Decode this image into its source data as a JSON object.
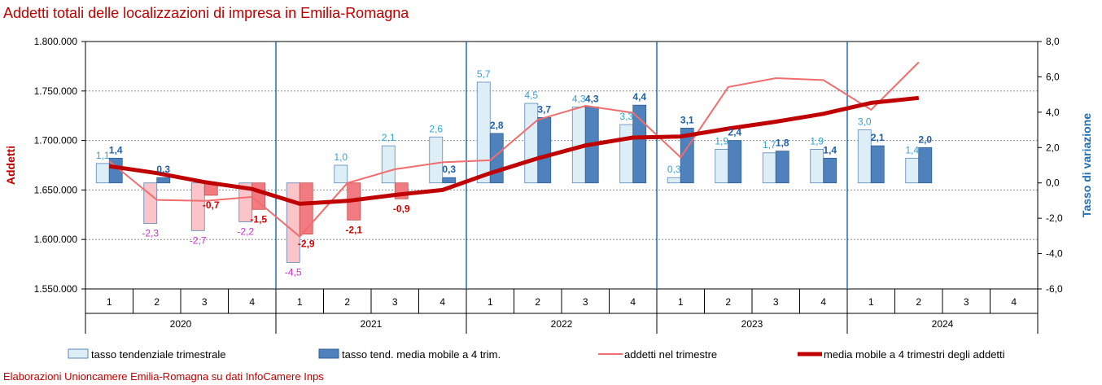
{
  "title": "Addetti totali delle localizzazioni di impresa in Emilia-Romagna",
  "footer": "Elaborazioni Unioncamere Emilia-Romagna su dati InfoCamere Inps",
  "colors": {
    "title": "#c00000",
    "light_bar": "#ddeef6",
    "light_bar_neg": "#fbc4c8",
    "dark_bar": "#4f81bd",
    "dark_bar_neg": "#f27b82",
    "thin_line": "#f26d6d",
    "thick_line": "#c00000",
    "light_label_pos": "#2fa3d6",
    "light_label_neg": "#cc33cc",
    "dark_label_pos": "#1f5fa6",
    "dark_label_neg": "#d40000",
    "year_divider": "#1f6fb5"
  },
  "chart_data": {
    "type": "bar",
    "title": "Addetti totali delle localizzazioni di impresa in Emilia-Romagna",
    "ylabel": "Addetti",
    "y2label": "Tasso di variazione",
    "ylim": [
      1550000,
      1800000
    ],
    "y2lim": [
      -6,
      8
    ],
    "y_ticks": [
      "1.550.000",
      "1.600.000",
      "1.650.000",
      "1.700.000",
      "1.750.000",
      "1.800.000"
    ],
    "y2_ticks": [
      "-6,0",
      "-4,0",
      "-2,0",
      "0,0",
      "2,0",
      "4,0",
      "6,0",
      "8,0"
    ],
    "quarters": [
      "1",
      "2",
      "3",
      "4",
      "1",
      "2",
      "3",
      "4",
      "1",
      "2",
      "3",
      "4",
      "1",
      "2",
      "3",
      "4",
      "1",
      "2",
      "3",
      "4"
    ],
    "years": [
      "2020",
      "2021",
      "2022",
      "2023",
      "2024"
    ],
    "legend_position": "bottom",
    "series": [
      {
        "name": "tasso tendenziale trimestrale",
        "type": "bar",
        "axis": "right",
        "values": [
          1.1,
          -2.3,
          -2.7,
          -2.2,
          -4.5,
          1.0,
          2.1,
          2.6,
          5.7,
          4.5,
          4.3,
          3.3,
          0.3,
          1.9,
          1.7,
          1.9,
          3.0,
          1.4,
          null,
          null
        ],
        "labels": [
          "1,1",
          "-2,3",
          "-2,7",
          "-2,2",
          "-4,5",
          "1,0",
          "2,1",
          "2,6",
          "5,7",
          "4,5",
          "4,3",
          "3,3",
          "0,3",
          "1,9",
          "1,7",
          "1,9",
          "3,0",
          "1,4",
          "",
          ""
        ]
      },
      {
        "name": "tasso tend. media mobile a 4 trim.",
        "type": "bar",
        "axis": "right",
        "values": [
          1.4,
          0.3,
          -0.7,
          -1.5,
          -2.9,
          -2.1,
          -0.9,
          0.3,
          2.8,
          3.7,
          4.3,
          4.4,
          3.1,
          2.4,
          1.8,
          1.4,
          2.1,
          2.0,
          null,
          null
        ],
        "labels": [
          "1,4",
          "0,3",
          "-0,7",
          "-1,5",
          "-2,9",
          "-2,1",
          "-0,9",
          "0,3",
          "2,8",
          "3,7",
          "4,3",
          "4,4",
          "3,1",
          "2,4",
          "1,8",
          "1,4",
          "2,1",
          "2,0",
          "",
          ""
        ]
      },
      {
        "name": "addetti nel trimestre",
        "type": "line",
        "axis": "left",
        "values": [
          1679000,
          1640000,
          1639000,
          1643000,
          1603000,
          1657000,
          1671000,
          1678000,
          1680000,
          1721000,
          1735000,
          1728000,
          1683000,
          1754000,
          1763000,
          1761000,
          1731000,
          1779000,
          null,
          null
        ]
      },
      {
        "name": "media mobile a 4 trimestri degli addetti",
        "type": "line",
        "axis": "left",
        "values": [
          1674000,
          1667000,
          1658000,
          1651000,
          1636000,
          1639000,
          1645000,
          1650000,
          1667000,
          1682000,
          1695000,
          1703000,
          1704000,
          1712000,
          1719000,
          1727000,
          1738000,
          1743000,
          null,
          null
        ]
      }
    ]
  }
}
